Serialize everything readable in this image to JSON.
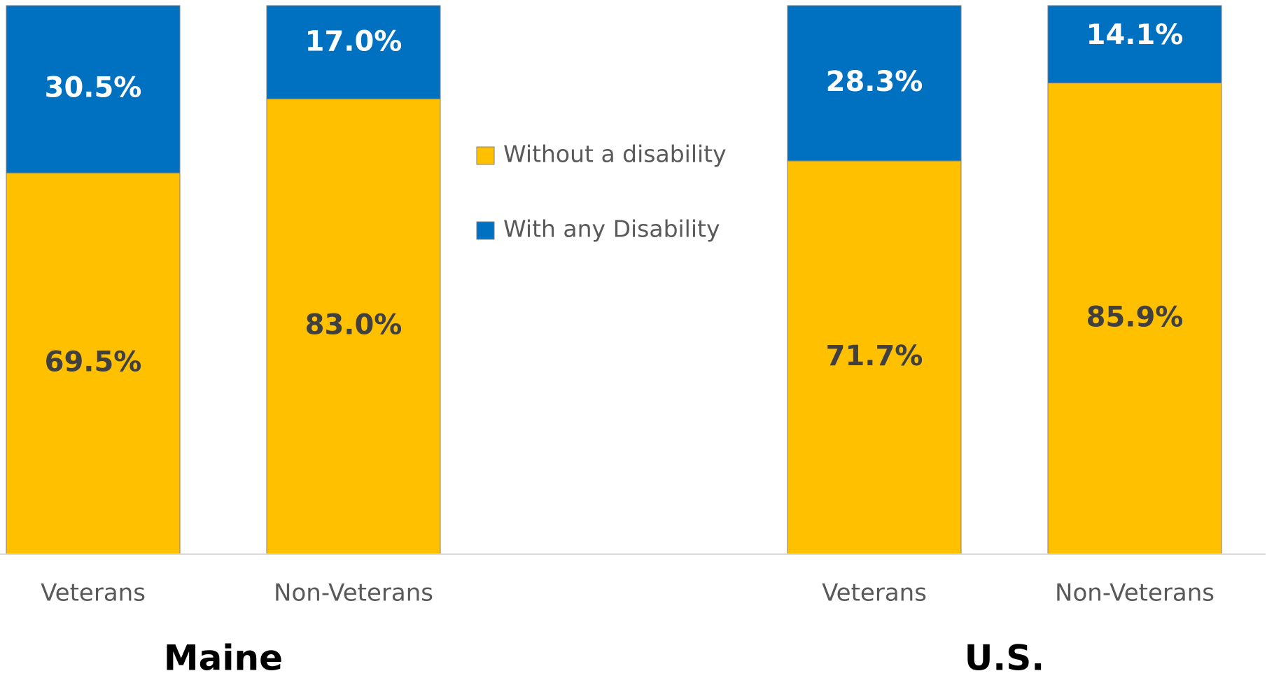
{
  "chart_data": {
    "type": "stacked_bar",
    "categories": [
      "Veterans",
      "Non-Veterans",
      null,
      "Veterans",
      "Non-Veterans"
    ],
    "groups": [
      "Maine",
      "U.S."
    ],
    "series": [
      {
        "name": "Without a disability",
        "color": "#FFC000",
        "label_color": "#404040",
        "values": [
          69.5,
          83.0,
          null,
          71.7,
          85.9
        ],
        "value_labels": [
          "69.5%",
          "83.0%",
          null,
          "71.7%",
          "85.9%"
        ]
      },
      {
        "name": "With any Disability",
        "color": "#0070C0",
        "label_color": "#FFFFFF",
        "values": [
          30.5,
          17.0,
          null,
          28.3,
          14.1
        ],
        "value_labels": [
          "30.5%",
          "17.0%",
          null,
          "28.3%",
          "14.1%"
        ]
      }
    ],
    "ylim": [
      0,
      100
    ],
    "grid": false
  }
}
